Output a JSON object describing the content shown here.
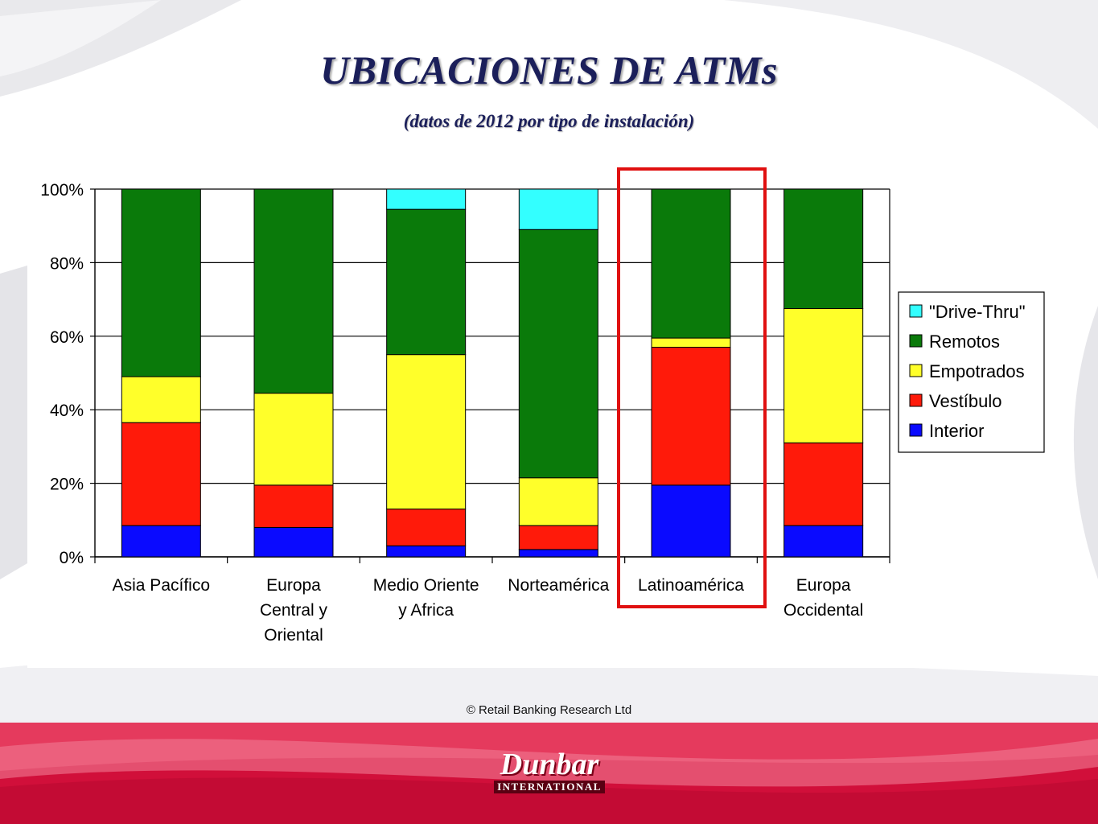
{
  "slide": {
    "title": "UBICACIONES DE ATMs",
    "subtitle": "(datos de 2012 por tipo de instalación)",
    "copyright": "© Retail Banking Research Ltd",
    "logo_word": "Dunbar",
    "logo_sub": "INTERNATIONAL"
  },
  "colors": {
    "title": "#1b1f5a",
    "footer_red": "#d10f3a",
    "highlight_box": "#e01010"
  },
  "chart_data": {
    "type": "bar",
    "stacked": true,
    "percent": true,
    "categories": [
      [
        "Asia Pacífico"
      ],
      [
        "Europa",
        "Central y",
        "Oriental"
      ],
      [
        "Medio Oriente",
        "y Africa"
      ],
      [
        "Norteamérica"
      ],
      [
        "Latinoamérica"
      ],
      [
        "Europa",
        "Occidental"
      ]
    ],
    "series": [
      {
        "name": "Interior",
        "color": "#0a0aff",
        "values": [
          8.5,
          8,
          3,
          2,
          19.5,
          8.5
        ]
      },
      {
        "name": "Vestíbulo",
        "color": "#ff1a0a",
        "values": [
          28,
          11.5,
          10,
          6.5,
          37.5,
          22.5
        ]
      },
      {
        "name": "Empotrados",
        "color": "#ffff2a",
        "values": [
          12.5,
          25,
          42,
          13,
          2.5,
          36.5
        ]
      },
      {
        "name": "Remotos",
        "color": "#0a7a0a",
        "values": [
          51,
          55.5,
          39.5,
          67.5,
          40.5,
          32.5
        ]
      },
      {
        "name": "\"Drive-Thru\"",
        "color": "#33ffff",
        "values": [
          0,
          0,
          5.5,
          11,
          0,
          0
        ]
      }
    ],
    "y_ticks": [
      "0%",
      "20%",
      "40%",
      "60%",
      "80%",
      "100%"
    ],
    "ylim": [
      0,
      100
    ],
    "grid": true,
    "legend_position": "right",
    "legend_order": [
      "\"Drive-Thru\"",
      "Remotos",
      "Empotrados",
      "Vestíbulo",
      "Interior"
    ],
    "highlighted_category": "Latinoamérica"
  }
}
